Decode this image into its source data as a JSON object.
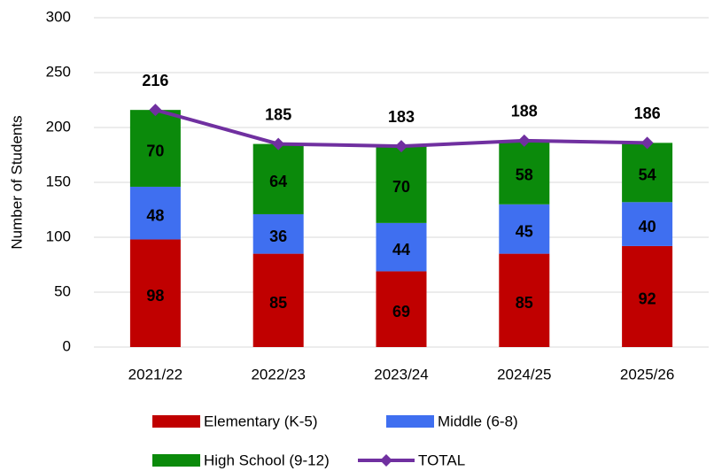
{
  "chart_data": {
    "type": "bar",
    "stacked": true,
    "y_label": "Number of Students",
    "categories": [
      "2021/22",
      "2022/23",
      "2023/24",
      "2024/25",
      "2025/26"
    ],
    "series": [
      {
        "name": "Elementary (K-5)",
        "color": "#c00000",
        "values": [
          98,
          85,
          69,
          85,
          92
        ]
      },
      {
        "name": "Middle (6-8)",
        "color": "#3f6ff0",
        "values": [
          48,
          36,
          44,
          45,
          40
        ]
      },
      {
        "name": "High School (9-12)",
        "color": "#0b8a0b",
        "values": [
          70,
          64,
          70,
          58,
          54
        ]
      },
      {
        "name": "TOTAL",
        "color": "#7030a0",
        "type": "line",
        "values": [
          216,
          185,
          183,
          188,
          186
        ]
      }
    ],
    "ylim": [
      0,
      300
    ],
    "yticks": [
      0,
      50,
      100,
      150,
      200,
      250,
      300
    ],
    "grid": true,
    "legend": "bottom"
  }
}
